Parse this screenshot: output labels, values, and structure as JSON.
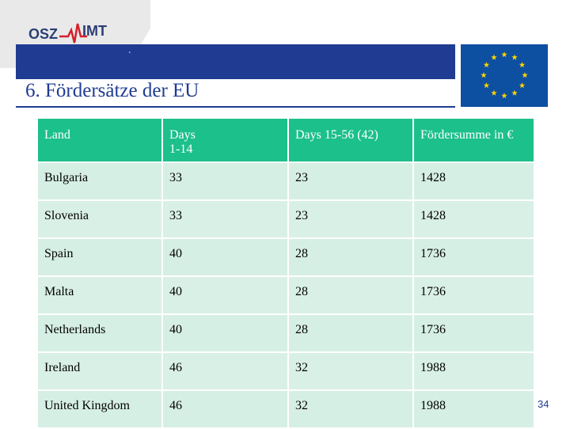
{
  "logo": {
    "left_text": "OSZ",
    "right_text": "IMT"
  },
  "slide": {
    "title": "6. Fördersätze der EU",
    "page_number": "34",
    "subtitle_mark": "."
  },
  "table": {
    "headers": [
      "Land",
      "Days",
      "1-14",
      "Days 15-56  (42)",
      "Fördersumme in €"
    ],
    "rows": [
      {
        "land": "Bulgaria",
        "d1": "33",
        "d2": "23",
        "sum": "1428"
      },
      {
        "land": "Slovenia",
        "d1": "33",
        "d2": "23",
        "sum": "1428"
      },
      {
        "land": "Spain",
        "d1": "40",
        "d2": "28",
        "sum": "1736"
      },
      {
        "land": "Malta",
        "d1": "40",
        "d2": "28",
        "sum": "1736"
      },
      {
        "land": "Netherlands",
        "d1": "40",
        "d2": "28",
        "sum": "1736"
      },
      {
        "land": "Ireland",
        "d1": "46",
        "d2": "32",
        "sum": "1988"
      },
      {
        "land": "United Kingdom",
        "d1": "46",
        "d2": "32",
        "sum": "1988"
      }
    ]
  },
  "colors": {
    "header_green": "#1cc08a",
    "row_bg": "#d6efe5",
    "title_blue": "#1f3c92",
    "eu_blue": "#0d4fa1",
    "eu_star": "#ffd400"
  }
}
